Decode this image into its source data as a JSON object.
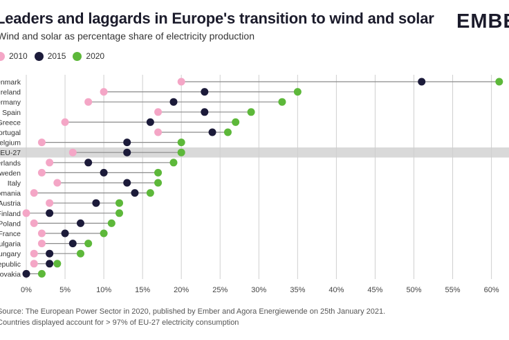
{
  "header": {
    "title": "Leaders and laggards in Europe's transition to wind and solar",
    "subtitle": "Wind and solar as percentage share of electricity production",
    "logo": "EMBER"
  },
  "footer": {
    "note1": "Source: The European Power Sector in 2020, published by Ember and Agora Energiewende on 25th January 2021.",
    "note2": "Countries displayed account for > 97% of EU-27 electricity consumption"
  },
  "colors": {
    "y2010": "#f4a6c6",
    "y2015": "#1c1b3a",
    "y2020": "#5db83a",
    "highlight": "#d9d9d9",
    "grid": "#cfcfcf",
    "connector": "#8a8a8a"
  },
  "chart_data": {
    "type": "dumbbell",
    "title": "Leaders and laggards in Europe's transition to wind and solar",
    "subtitle": "Wind and solar as percentage share of electricity production",
    "categories": [
      "Denmark",
      "Ireland",
      "Germany",
      "Spain",
      "Greece",
      "Portugal",
      "Belgium",
      "EU-27",
      "Netherlands",
      "Sweden",
      "Italy",
      "Romania",
      "Austria",
      "Finland",
      "Poland",
      "France",
      "Bulgaria",
      "Hungary",
      "Czech Republic",
      "Slovakia"
    ],
    "series": [
      {
        "name": "2010",
        "color": "#f4a6c6",
        "values": [
          20,
          10,
          8,
          17,
          5,
          17,
          2,
          6,
          3,
          2,
          4,
          1,
          3,
          0,
          1,
          2,
          2,
          1,
          1,
          0
        ]
      },
      {
        "name": "2015",
        "color": "#1c1b3a",
        "values": [
          51,
          23,
          19,
          23,
          16,
          24,
          13,
          13,
          8,
          10,
          13,
          14,
          9,
          3,
          7,
          5,
          6,
          3,
          3,
          0
        ]
      },
      {
        "name": "2020",
        "color": "#5db83a",
        "values": [
          61,
          35,
          33,
          29,
          27,
          26,
          20,
          20,
          19,
          17,
          17,
          16,
          12,
          12,
          11,
          10,
          8,
          7,
          4,
          2
        ]
      }
    ],
    "highlight": "EU-27",
    "xlim": [
      0,
      61
    ],
    "xticks": [
      0,
      5,
      10,
      15,
      20,
      25,
      30,
      35,
      40,
      45,
      50,
      55,
      60
    ],
    "xtick_labels": [
      "0%",
      "5%",
      "10%",
      "15%",
      "20%",
      "25%",
      "30%",
      "35%",
      "40%",
      "45%",
      "50%",
      "55%",
      "60%"
    ],
    "grid": "vertical",
    "legend": "top-left"
  }
}
